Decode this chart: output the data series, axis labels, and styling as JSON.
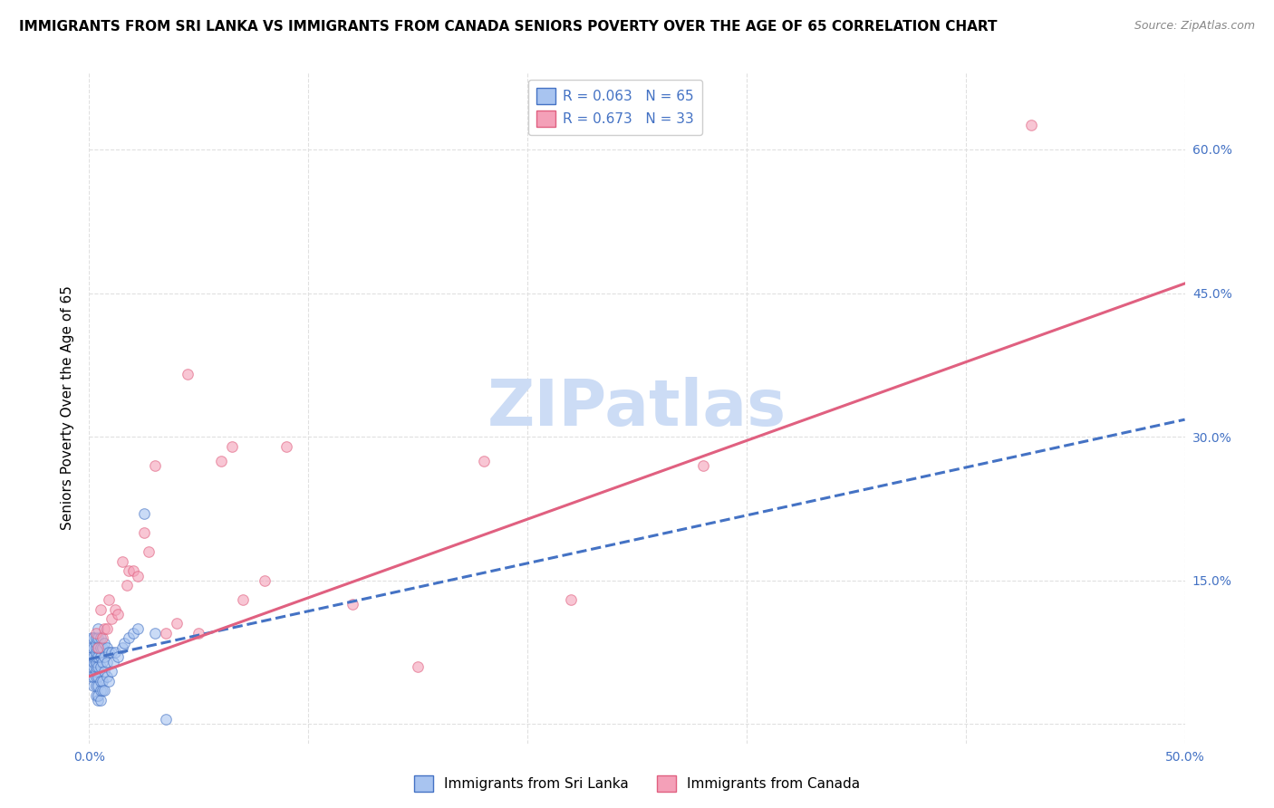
{
  "title": "IMMIGRANTS FROM SRI LANKA VS IMMIGRANTS FROM CANADA SENIORS POVERTY OVER THE AGE OF 65 CORRELATION CHART",
  "source": "Source: ZipAtlas.com",
  "ylabel": "Seniors Poverty Over the Age of 65",
  "watermark": "ZIPatlas",
  "xlim": [
    0.0,
    0.5
  ],
  "ylim": [
    -0.02,
    0.68
  ],
  "sri_lanka_R": 0.063,
  "sri_lanka_N": 65,
  "canada_R": 0.673,
  "canada_N": 33,
  "sri_lanka_color": "#a8c4f0",
  "canada_color": "#f4a0b8",
  "sri_lanka_line_color": "#4472c4",
  "canada_line_color": "#e06080",
  "sri_lanka_x": [
    0.001,
    0.001,
    0.001,
    0.001,
    0.001,
    0.002,
    0.002,
    0.002,
    0.002,
    0.002,
    0.002,
    0.002,
    0.003,
    0.003,
    0.003,
    0.003,
    0.003,
    0.003,
    0.003,
    0.003,
    0.003,
    0.003,
    0.003,
    0.004,
    0.004,
    0.004,
    0.004,
    0.004,
    0.004,
    0.004,
    0.004,
    0.004,
    0.005,
    0.005,
    0.005,
    0.005,
    0.005,
    0.005,
    0.005,
    0.006,
    0.006,
    0.006,
    0.006,
    0.007,
    0.007,
    0.007,
    0.007,
    0.008,
    0.008,
    0.008,
    0.009,
    0.009,
    0.01,
    0.01,
    0.011,
    0.012,
    0.013,
    0.015,
    0.016,
    0.018,
    0.02,
    0.022,
    0.025,
    0.03,
    0.035
  ],
  "sri_lanka_y": [
    0.05,
    0.06,
    0.07,
    0.08,
    0.09,
    0.04,
    0.05,
    0.06,
    0.065,
    0.07,
    0.08,
    0.09,
    0.03,
    0.04,
    0.05,
    0.055,
    0.06,
    0.065,
    0.07,
    0.075,
    0.08,
    0.085,
    0.09,
    0.025,
    0.03,
    0.04,
    0.05,
    0.06,
    0.07,
    0.08,
    0.09,
    0.1,
    0.025,
    0.035,
    0.045,
    0.06,
    0.07,
    0.08,
    0.09,
    0.035,
    0.045,
    0.065,
    0.08,
    0.035,
    0.055,
    0.07,
    0.085,
    0.05,
    0.065,
    0.08,
    0.045,
    0.075,
    0.055,
    0.075,
    0.065,
    0.075,
    0.07,
    0.08,
    0.085,
    0.09,
    0.095,
    0.1,
    0.22,
    0.095,
    0.005
  ],
  "canada_x": [
    0.003,
    0.004,
    0.005,
    0.006,
    0.007,
    0.008,
    0.009,
    0.01,
    0.012,
    0.013,
    0.015,
    0.017,
    0.018,
    0.02,
    0.022,
    0.025,
    0.027,
    0.03,
    0.035,
    0.04,
    0.045,
    0.05,
    0.06,
    0.065,
    0.07,
    0.08,
    0.09,
    0.12,
    0.15,
    0.18,
    0.22,
    0.28,
    0.43
  ],
  "canada_y": [
    0.095,
    0.08,
    0.12,
    0.09,
    0.1,
    0.1,
    0.13,
    0.11,
    0.12,
    0.115,
    0.17,
    0.145,
    0.16,
    0.16,
    0.155,
    0.2,
    0.18,
    0.27,
    0.095,
    0.105,
    0.365,
    0.095,
    0.275,
    0.29,
    0.13,
    0.15,
    0.29,
    0.125,
    0.06,
    0.275,
    0.13,
    0.27,
    0.625
  ],
  "background_color": "#ffffff",
  "grid_color": "#e0e0e0",
  "title_fontsize": 11,
  "axis_label_fontsize": 11,
  "tick_fontsize": 10,
  "legend_fontsize": 11,
  "watermark_fontsize": 52,
  "watermark_color": "#ccdcf5",
  "scatter_size": 70,
  "scatter_alpha": 0.6,
  "line_width": 2.2,
  "sl_line_intercept": 0.068,
  "sl_line_slope": 0.5,
  "ca_line_intercept": 0.05,
  "ca_line_slope": 0.82
}
